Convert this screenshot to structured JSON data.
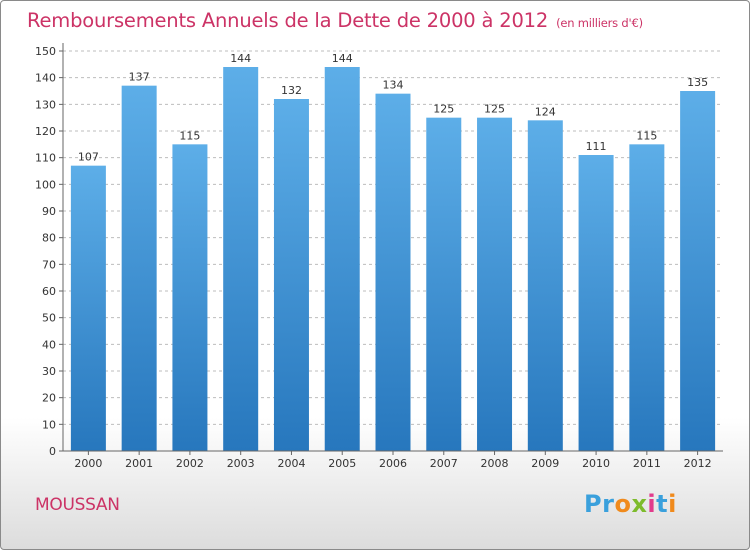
{
  "title": "Remboursements Annuels de la Dette de 2000 à 2012",
  "unit": "(en milliers d'€)",
  "town": "MOUSSAN",
  "logo": {
    "text": "Proxiti",
    "letters": [
      {
        "char": "P",
        "color": "#3aa0dc"
      },
      {
        "char": "r",
        "color": "#3aa0dc"
      },
      {
        "char": "o",
        "color": "#f08a1c"
      },
      {
        "char": "x",
        "color": "#7dbb2c"
      },
      {
        "char": "i",
        "color": "#e23b8c"
      },
      {
        "char": "t",
        "color": "#3aa0dc"
      },
      {
        "char": "i",
        "color": "#f08a1c"
      }
    ]
  },
  "colors": {
    "title": "#cc3366",
    "bar_top": "#5daee8",
    "bar_bottom": "#2777bd",
    "grid": "#bdbdbd",
    "axis": "#666666"
  },
  "chart_data": {
    "type": "bar",
    "title": "Remboursements Annuels de la Dette de 2000 à 2012",
    "categories": [
      "2000",
      "2001",
      "2002",
      "2003",
      "2004",
      "2005",
      "2006",
      "2007",
      "2008",
      "2009",
      "2010",
      "2011",
      "2012"
    ],
    "values": [
      107,
      137,
      115,
      144,
      132,
      144,
      134,
      125,
      125,
      124,
      111,
      115,
      135
    ],
    "ylim": [
      0,
      150
    ],
    "yticks": [
      0,
      10,
      20,
      30,
      40,
      50,
      60,
      70,
      80,
      90,
      100,
      110,
      120,
      130,
      140,
      150
    ],
    "grid": true,
    "data_labels": true
  }
}
